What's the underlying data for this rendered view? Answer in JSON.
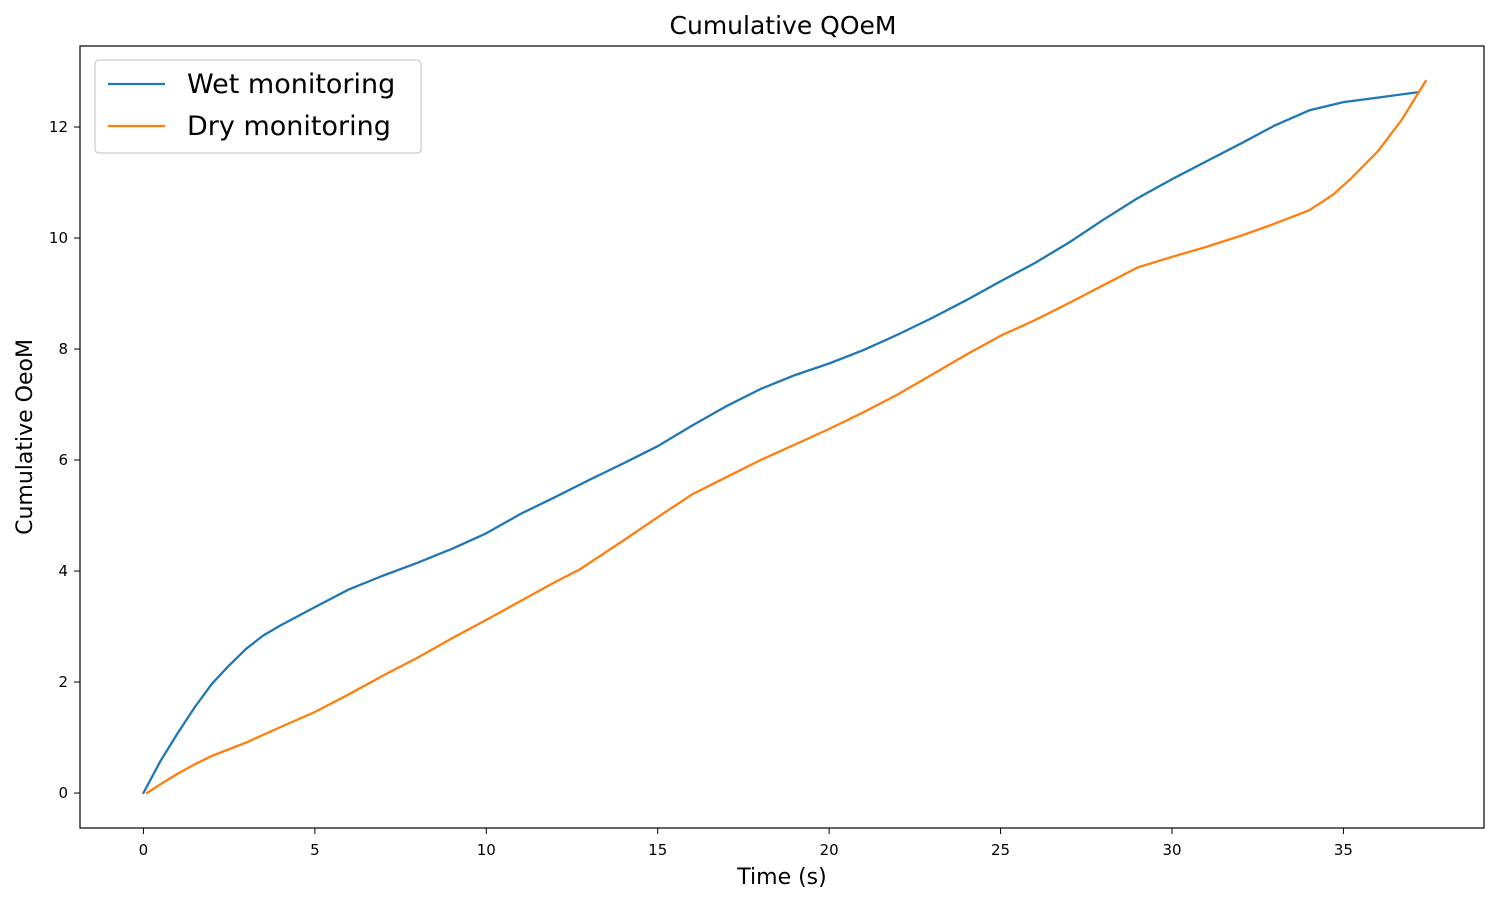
{
  "chart_data": {
    "type": "line",
    "title": "Cumulative QOeM",
    "xlabel": "Time (s)",
    "ylabel": "Cumulative OeoM",
    "xlim": [
      -1.85,
      39.1
    ],
    "ylim": [
      -0.63,
      13.46
    ],
    "xticks": [
      0,
      5,
      10,
      15,
      20,
      25,
      30,
      35
    ],
    "yticks": [
      0,
      2,
      4,
      6,
      8,
      10,
      12
    ],
    "grid": false,
    "legend_position": "upper-left",
    "series": [
      {
        "name": "Wet monitoring",
        "color": "#1f77b4",
        "x": [
          0.0,
          0.5,
          1.0,
          1.5,
          2.0,
          2.5,
          3.0,
          3.5,
          4.0,
          5.0,
          6.0,
          7.0,
          8.0,
          9.0,
          10.0,
          11.0,
          12.0,
          13.0,
          14.0,
          15.0,
          16.0,
          17.0,
          18.0,
          19.0,
          20.0,
          21.0,
          22.0,
          23.0,
          24.0,
          25.0,
          26.0,
          27.0,
          28.0,
          29.0,
          30.0,
          31.0,
          32.0,
          33.0,
          34.0,
          35.0,
          36.0,
          37.2
        ],
        "y": [
          0.0,
          0.58,
          1.08,
          1.55,
          1.97,
          2.3,
          2.6,
          2.84,
          3.02,
          3.35,
          3.67,
          3.92,
          4.15,
          4.4,
          4.68,
          5.03,
          5.33,
          5.64,
          5.94,
          6.25,
          6.62,
          6.97,
          7.28,
          7.53,
          7.74,
          7.98,
          8.26,
          8.56,
          8.88,
          9.22,
          9.55,
          9.92,
          10.33,
          10.72,
          11.06,
          11.38,
          11.7,
          12.03,
          12.3,
          12.45,
          12.53,
          12.63
        ]
      },
      {
        "name": "Dry monitoring",
        "color": "#ff7f0e",
        "x": [
          0.1,
          0.5,
          1.0,
          1.5,
          2.0,
          3.0,
          4.0,
          5.0,
          6.0,
          7.0,
          8.0,
          9.0,
          10.0,
          11.0,
          12.0,
          12.7,
          14.0,
          15.0,
          16.0,
          17.0,
          18.0,
          19.0,
          20.0,
          21.0,
          22.0,
          23.0,
          24.0,
          25.0,
          26.0,
          27.0,
          28.0,
          29.0,
          30.0,
          31.0,
          32.0,
          33.0,
          34.0,
          34.7,
          35.2,
          36.0,
          36.7,
          37.4
        ],
        "y": [
          0.0,
          0.16,
          0.35,
          0.52,
          0.67,
          0.91,
          1.19,
          1.46,
          1.78,
          2.12,
          2.44,
          2.79,
          3.12,
          3.46,
          3.8,
          4.02,
          4.55,
          4.97,
          5.38,
          5.69,
          6.0,
          6.28,
          6.56,
          6.86,
          7.18,
          7.54,
          7.9,
          8.24,
          8.52,
          8.83,
          9.15,
          9.47,
          9.66,
          9.84,
          10.04,
          10.26,
          10.5,
          10.78,
          11.06,
          11.56,
          12.13,
          12.83
        ]
      }
    ]
  }
}
